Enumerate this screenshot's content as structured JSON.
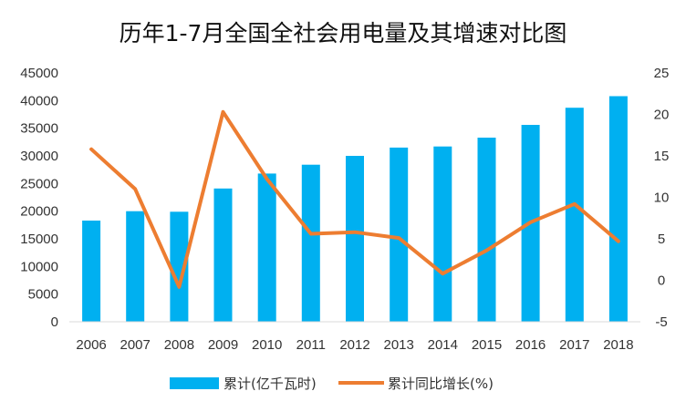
{
  "chart_data": {
    "type": "bar",
    "title": "历年1-7月全国全社会用电量及其增速对比图",
    "categories": [
      "2006",
      "2007",
      "2008",
      "2009",
      "2010",
      "2011",
      "2012",
      "2013",
      "2014",
      "2015",
      "2016",
      "2017",
      "2018"
    ],
    "series": [
      {
        "name": "累计(亿千瓦时)",
        "type": "bar",
        "axis": "left",
        "color": "#00B0F0",
        "values": [
          18300,
          20000,
          19900,
          24100,
          26800,
          28400,
          30000,
          31500,
          31700,
          33300,
          35600,
          38700,
          40800
        ]
      },
      {
        "name": "累计同比增长(%)",
        "type": "line",
        "axis": "right",
        "color": "#ED7D31",
        "values": [
          15.8,
          11.0,
          -0.8,
          20.3,
          12.2,
          5.6,
          5.8,
          5.1,
          0.8,
          3.6,
          7.0,
          9.2,
          4.7
        ]
      }
    ],
    "y_left": {
      "ylim": [
        0,
        45000
      ],
      "ticks": [
        "0",
        "5000",
        "10000",
        "15000",
        "20000",
        "25000",
        "30000",
        "35000",
        "40000",
        "45000"
      ]
    },
    "y_right": {
      "ylim": [
        -5,
        25
      ],
      "ticks": [
        "-5",
        "0",
        "5",
        "10",
        "15",
        "20",
        "25"
      ]
    },
    "grid": false,
    "legend_position": "bottom"
  }
}
